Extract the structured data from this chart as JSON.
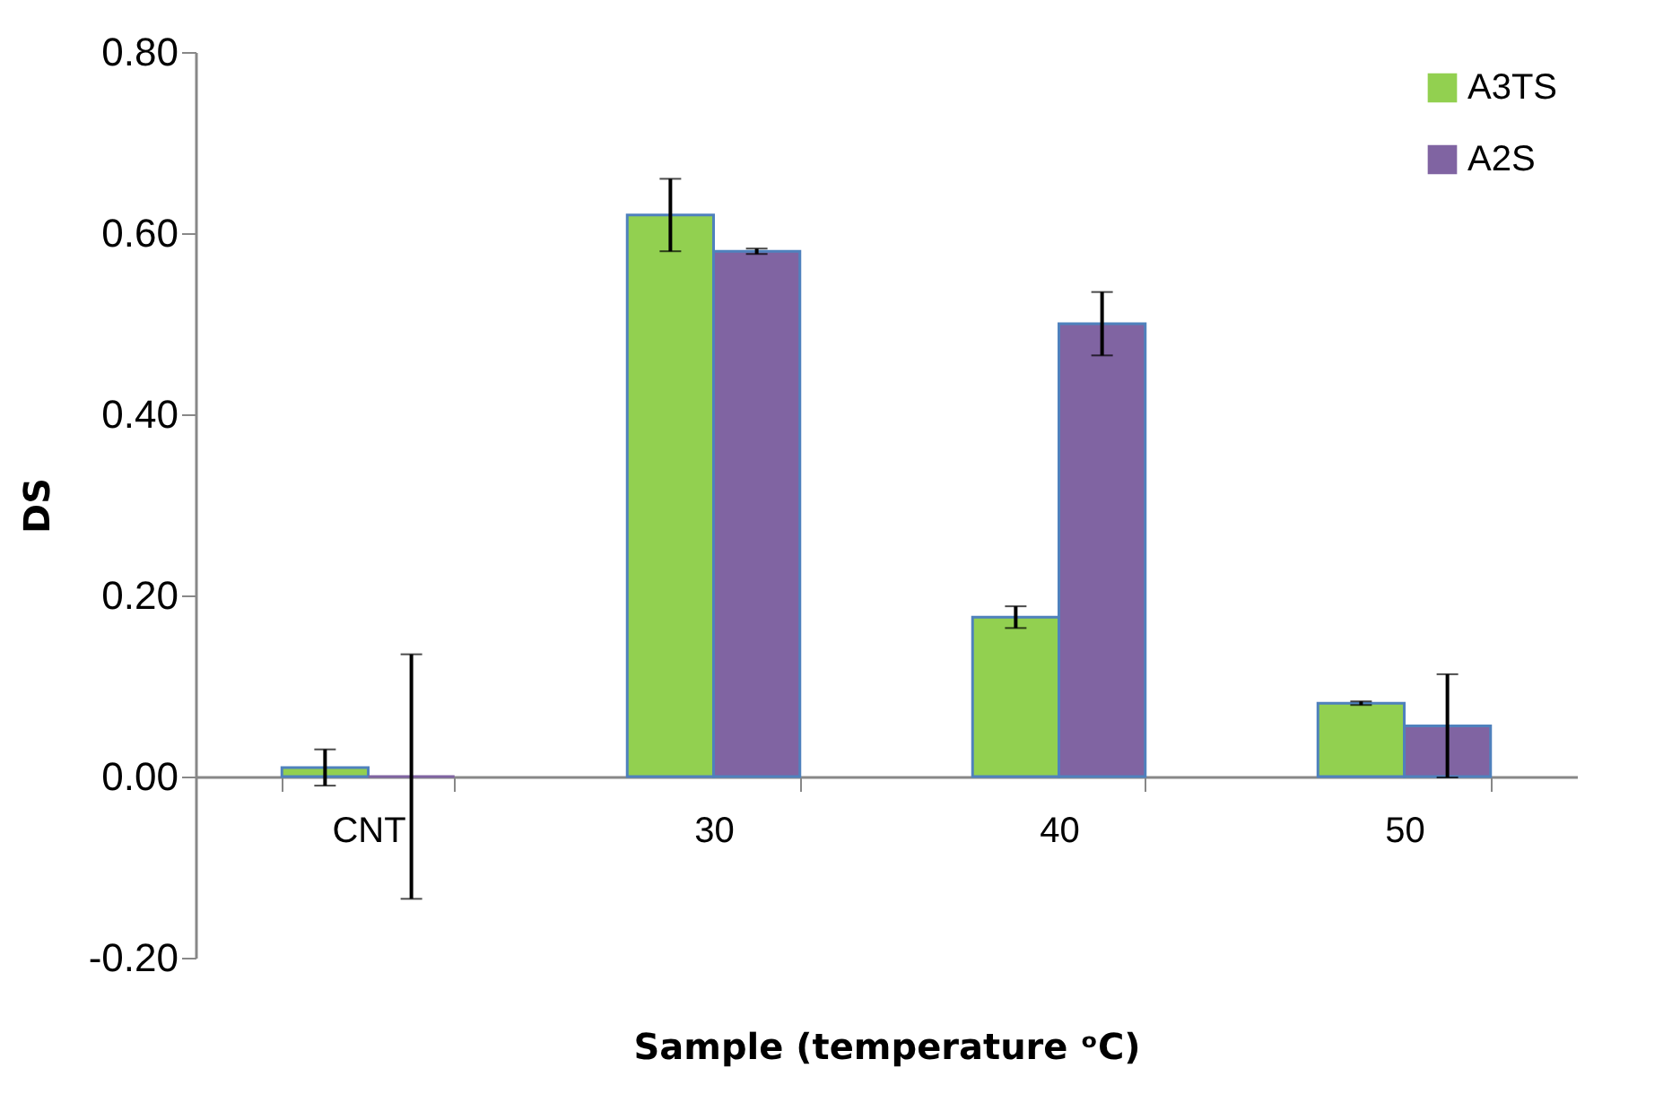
{
  "chart_data": {
    "type": "bar",
    "xlabel": "Sample (temperature ᵒC)",
    "ylabel": "DS",
    "categories": [
      "CNT",
      "30",
      "40",
      "50"
    ],
    "series": [
      {
        "name": "A3TS",
        "color": "#92d050",
        "values": [
          0.01,
          0.62,
          0.176,
          0.081
        ],
        "errors": [
          0.02,
          0.04,
          0.012,
          0.002
        ]
      },
      {
        "name": "A2S",
        "color": "#8064a2",
        "values": [
          0,
          0.58,
          0.5,
          0.056
        ],
        "errors": [
          0.135,
          0.003,
          0.035,
          0.057
        ]
      }
    ],
    "ylim": [
      -0.2,
      0.8
    ],
    "yticks": [
      {
        "value": -0.2,
        "label": "-0.20"
      },
      {
        "value": 0,
        "label": "0.00"
      },
      {
        "value": 0.2,
        "label": "0.20"
      },
      {
        "value": 0.4,
        "label": "0.40"
      },
      {
        "value": 0.6,
        "label": "0.60"
      },
      {
        "value": 0.8,
        "label": "0.80"
      }
    ],
    "grid": false,
    "legend": "top right"
  }
}
